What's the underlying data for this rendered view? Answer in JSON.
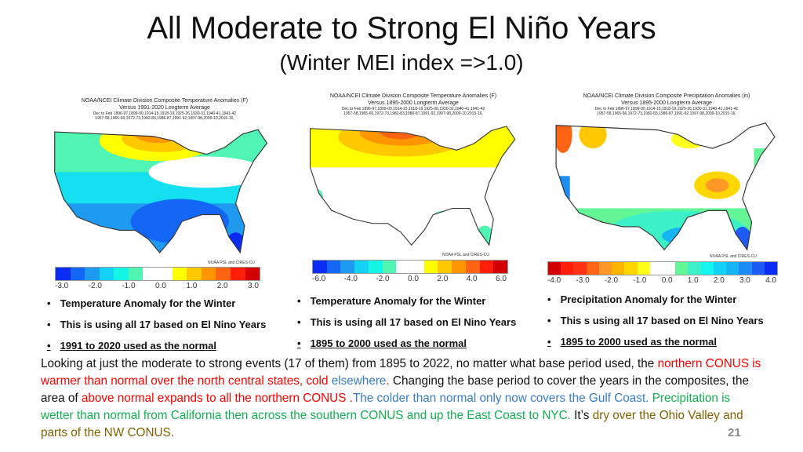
{
  "title": "All Moderate to Strong El Niño Years",
  "subtitle": "(Winter MEI index =>1.0)",
  "maps": [
    {
      "header_line1": "NOAA/NCEI Climate Division Composite Temperature Anomalies (F)",
      "header_line2": "Versus 1991-2020 Longterm Average",
      "years_line1": "Dec to Feb  1896-97,1899-00,1914-15,1918-19,1925-26,1930-31,1940-41,1941-42",
      "years_line2": "1957-58,1965-66,1972-73,1982-83,1986-87,1991-92,1997-98,2009-10,2015-16,",
      "credit": "NOAA PSL and CIRES-CU",
      "colorbar": [
        "#0a2cf5",
        "#1466f5",
        "#1e9af0",
        "#14d2f5",
        "#14f5e6",
        "#50f5b4",
        "#ffffff",
        "#ffffff",
        "#ffff00",
        "#ffc800",
        "#ff9600",
        "#ff6414",
        "#ff1e0a",
        "#d20000"
      ],
      "ticks": [
        "-3.0",
        "-2.0",
        "-1.0",
        "0.0",
        "1.0",
        "2.0",
        "3.0"
      ],
      "bullets": [
        "Temperature Anomaly for the Winter",
        "This is using all 17 based on El Nino Years",
        "1991 to 2020 used as the normal"
      ]
    },
    {
      "header_line1": "NOAA/NCEI Climate Division Composite Temperature Anomalies (F)",
      "header_line2": "Versus 1895-2000 Longterm Average",
      "years_line1": "Dec to Feb  1896-97,1899-00,1914-15,1918-19,1925-26,1930-31,1940-41,1941-42",
      "years_line2": "1957-58,1965-66,1972-73,1982-83,1986-87,1991-92,1997-98,2009-10,2015-16,",
      "credit": "NOAA PSL and CIRES-CU",
      "colorbar": [
        "#0a2cf5",
        "#1466f5",
        "#1e9af0",
        "#14d2f5",
        "#14f5e6",
        "#50f5b4",
        "#ffffff",
        "#ffffff",
        "#ffff00",
        "#ffc800",
        "#ff9600",
        "#ff6414",
        "#ff1e0a",
        "#d20000"
      ],
      "ticks": [
        "-6.0",
        "-4.0",
        "-2.0",
        "0.0",
        "2.0",
        "4.0",
        "6.0"
      ],
      "bullets": [
        "Temperature Anomaly for the Winter",
        "This is using all 17 based on El Nino Years",
        "1895 to 2000 used as the normal"
      ]
    },
    {
      "header_line1": "NOAA/NCEI Climate Division Composite Precipitation Anomalies (in)",
      "header_line2": "Versus 1895-2000 Longterm Average",
      "years_line1": "Dec to Feb  1896-97,1899-00,1914-15,1918-19,1925-26,1930-31,1940-41,1941-42",
      "years_line2": "1957-58,1965-66,1972-73,1982-83,1986-87,1991-92,1997-98,2009-10,2015-16,",
      "credit": "NOAA PSL and CIRES-CU",
      "colorbar": [
        "#d20000",
        "#ff1e0a",
        "#ff3214",
        "#ff6414",
        "#ff9628",
        "#ffb400",
        "#ffd700",
        "#ffff1e",
        "#ffffff",
        "#ffffff",
        "#64f596",
        "#3cf0c8",
        "#14f5f0",
        "#14d2f5",
        "#14b4f5",
        "#1e8cf5",
        "#1e5af5",
        "#0a2cf5"
      ],
      "ticks": [
        "-4.0",
        "-3.0",
        "-2.0",
        "-1.0",
        "0.0",
        "1.0",
        "2.0",
        "3.0",
        "4.0"
      ],
      "bullets": [
        "Precipitation Anomaly for the Winter",
        "This s using all 17 based on El Nino Years",
        "1895 to 2000 used as the normal"
      ]
    }
  ],
  "paragraph": [
    {
      "text": "Looking at just the moderate to strong events (17 of them) from 1895 to 2022, no matter what base period used, the ",
      "color": "black"
    },
    {
      "text": "northern CONUS is warmer than normal  over the north central states, cold ",
      "color": "red"
    },
    {
      "text": "elsewhere",
      "color": "blue"
    },
    {
      "text": ".",
      "color": "red"
    },
    {
      "text": " Changing the base period to cover the years in the composites,  the area of ",
      "color": "black"
    },
    {
      "text": "above normal expands to all the northern CONUS .",
      "color": "red"
    },
    {
      "text": "The colder than normal only now covers the Gulf Coast. ",
      "color": "blue"
    },
    {
      "text": "Precipitation is wetter than normal from California then across the southern CONUS and up the East Coast to NYC.",
      "color": "green"
    },
    {
      "text": " It’s ",
      "color": "black"
    },
    {
      "text": "dry over the Ohio Valley and parts of the NW CONUS.",
      "color": "brown"
    }
  ],
  "page_number": "21"
}
